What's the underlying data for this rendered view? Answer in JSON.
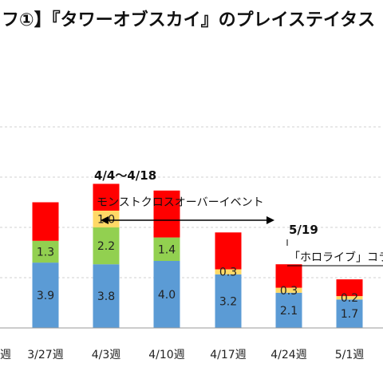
{
  "chart_data": {
    "type": "bar",
    "stacked": true,
    "title": "フ①】『タワーオブスカイ』のプレイステイタス",
    "categories": [
      "週",
      "3/27週",
      "4/3週",
      "4/10週",
      "4/17週",
      "4/24週",
      "5/1週"
    ],
    "series": [
      {
        "name": "",
        "color": "#5b9bd5",
        "values": [
          null,
          3.9,
          3.8,
          4.0,
          3.2,
          2.1,
          1.7
        ]
      },
      {
        "name": "",
        "color": "#92d050",
        "values": [
          null,
          1.3,
          2.2,
          1.4,
          0.0,
          0.0,
          0.0
        ]
      },
      {
        "name": "",
        "color": "#ffd966",
        "values": [
          null,
          0.0,
          1.0,
          0.0,
          0.3,
          0.3,
          0.2
        ]
      },
      {
        "name": "",
        "color": "#ff0000",
        "values": [
          null,
          2.3,
          1.6,
          2.8,
          2.2,
          1.4,
          1.0
        ]
      }
    ],
    "data_labels": [
      {
        "category": "3/27週",
        "series": 0,
        "text": "3.9"
      },
      {
        "category": "3/27週",
        "series": 1,
        "text": "1.3"
      },
      {
        "category": "4/3週",
        "series": 0,
        "text": "3.8"
      },
      {
        "category": "4/3週",
        "series": 1,
        "text": "2.2"
      },
      {
        "category": "4/3週",
        "series": 2,
        "text": "1.0"
      },
      {
        "category": "4/10週",
        "series": 0,
        "text": "4.0"
      },
      {
        "category": "4/10週",
        "series": 1,
        "text": "1.4"
      },
      {
        "category": "4/17週",
        "series": 0,
        "text": "3.2"
      },
      {
        "category": "4/17週",
        "series": 2,
        "text": "0.3"
      },
      {
        "category": "4/24週",
        "series": 0,
        "text": "2.1"
      },
      {
        "category": "4/24週",
        "series": 2,
        "text": "0.3"
      },
      {
        "category": "5/1週",
        "series": 0,
        "text": "1.7"
      },
      {
        "category": "5/1週",
        "series": 2,
        "text": "0.2"
      }
    ],
    "ylim": [
      0,
      15
    ],
    "gridlines": [
      3,
      6,
      9,
      12
    ],
    "grid": true,
    "annotations": {
      "event1_date": "4/4～4/18",
      "event1_label": "モンストクロスオーバーイベント",
      "event2_date": "5/19",
      "event2_label": "「ホロライブ」コラ"
    }
  }
}
